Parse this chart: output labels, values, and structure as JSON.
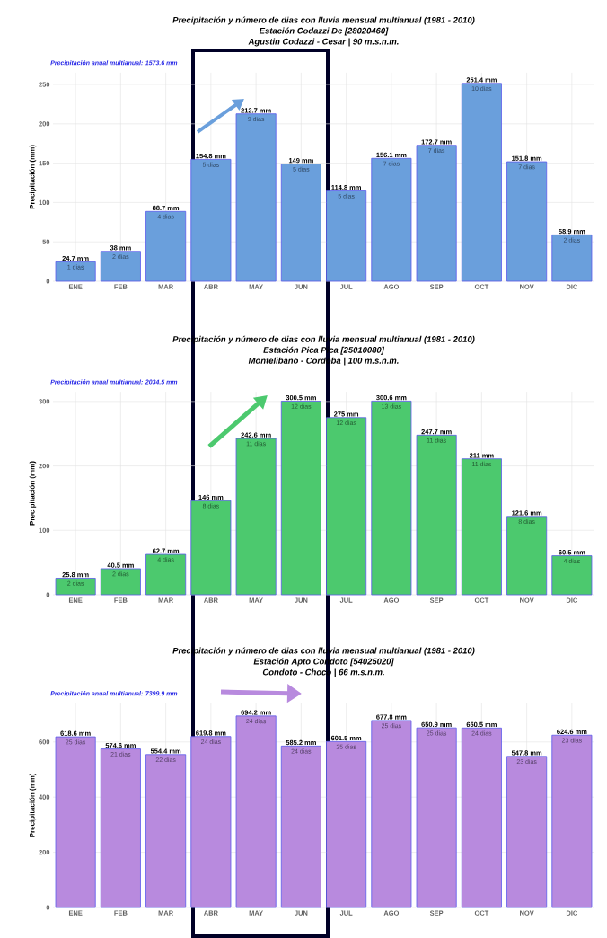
{
  "chart_data": [
    {
      "type": "bar",
      "title": "Precipitación y número de dias con lluvia mensual multianual (1981 - 2010)",
      "subtitle": "Estación Codazzi Dc [28020460]",
      "ylabel": "Precipitación (mm)",
      "categories": [
        "ENE",
        "FEB",
        "MAR",
        "ABR",
        "MAY",
        "JUN",
        "JUL",
        "AGO",
        "SEP",
        "OCT",
        "NOV",
        "DIC"
      ],
      "values": [
        24.7,
        38,
        88.7,
        154.8,
        212.7,
        149,
        114.8,
        156.1,
        172.7,
        251.4,
        151.8,
        58.9
      ],
      "value_labels": [
        "24.7 mm",
        "38 mm",
        "88.7 mm",
        "154.8 mm",
        "212.7 mm",
        "149 mm",
        "114.8 mm",
        "156.1 mm",
        "172.7 mm",
        "251.4 mm",
        "151.8 mm",
        "58.9 mm"
      ],
      "color": "#6a9fdc",
      "ylim": [
        0,
        265
      ],
      "yticks": [
        0,
        50,
        100,
        150,
        200,
        250
      ],
      "grid": true,
      "annotations": [
        "Agustin Codazzi - Cesar | 90 m.s.n.m.",
        "Precipitación anual multianual: 1573.6 mm",
        {
          "text": "1 dias",
          "x": "ENE",
          "y": 24.7
        },
        {
          "text": "2 dias",
          "x": "FEB",
          "y": 38
        },
        {
          "text": "4 dias",
          "x": "MAR",
          "y": 88.7
        },
        {
          "text": "5 dias",
          "x": "ABR",
          "y": 154.8
        },
        {
          "text": "9 dias",
          "x": "MAY",
          "y": 212.7
        },
        {
          "text": "5 dias",
          "x": "JUN",
          "y": 149
        },
        {
          "text": "5 dias",
          "x": "JUL",
          "y": 114.8
        },
        {
          "text": "7 dias",
          "x": "AGO",
          "y": 156.1
        },
        {
          "text": "7 dias",
          "x": "SEP",
          "y": 172.7
        },
        {
          "text": "10 dias",
          "x": "OCT",
          "y": 251.4
        },
        {
          "text": "7 dias",
          "x": "NOV",
          "y": 151.8
        },
        {
          "text": "2 dias",
          "x": "DIC",
          "y": 58.9
        }
      ]
    },
    {
      "type": "bar",
      "title": "Precipitación y número de dias con lluvia mensual multianual (1981 - 2010)",
      "subtitle": "Estación Pica Pica [25010080]",
      "ylabel": "Precipitación (mm)",
      "categories": [
        "ENE",
        "FEB",
        "MAR",
        "ABR",
        "MAY",
        "JUN",
        "JUL",
        "AGO",
        "SEP",
        "OCT",
        "NOV",
        "DIC"
      ],
      "values": [
        25.8,
        40.5,
        62.7,
        146,
        242.6,
        300.5,
        275,
        300.6,
        247.7,
        211,
        121.6,
        60.5
      ],
      "value_labels": [
        "25.8 mm",
        "40.5 mm",
        "62.7 mm",
        "146 mm",
        "242.6 mm",
        "300.5 mm",
        "275 mm",
        "300.6 mm",
        "247.7 mm",
        "211 mm",
        "121.6 mm",
        "60.5 mm"
      ],
      "color": "#4cc96e",
      "ylim": [
        0,
        315
      ],
      "yticks": [
        0,
        100,
        200,
        300
      ],
      "grid": true,
      "annotations": [
        "Montelibano - Cordoba | 100 m.s.n.m.",
        "Precipitación anual multianual: 2034.5 mm",
        {
          "text": "2 dias",
          "x": "ENE",
          "y": 25.8
        },
        {
          "text": "2 dias",
          "x": "FEB",
          "y": 40.5
        },
        {
          "text": "4 dias",
          "x": "MAR",
          "y": 62.7
        },
        {
          "text": "8 dias",
          "x": "ABR",
          "y": 146
        },
        {
          "text": "11 dias",
          "x": "MAY",
          "y": 242.6
        },
        {
          "text": "12 dias",
          "x": "JUN",
          "y": 300.5
        },
        {
          "text": "12 dias",
          "x": "JUL",
          "y": 275
        },
        {
          "text": "13 dias",
          "x": "AGO",
          "y": 300.6
        },
        {
          "text": "11 dias",
          "x": "SEP",
          "y": 247.7
        },
        {
          "text": "11 dias",
          "x": "OCT",
          "y": 211
        },
        {
          "text": "8 dias",
          "x": "NOV",
          "y": 121.6
        },
        {
          "text": "4 dias",
          "x": "DIC",
          "y": 60.5
        }
      ]
    },
    {
      "type": "bar",
      "title": "Precipitación y número de dias con lluvia mensual multianual (1981 - 2010)",
      "subtitle": "Estación Apto Condoto [54025020]",
      "ylabel": "Precipitación (mm)",
      "categories": [
        "ENE",
        "FEB",
        "MAR",
        "ABR",
        "MAY",
        "JUN",
        "JUL",
        "AGO",
        "SEP",
        "OCT",
        "NOV",
        "DIC"
      ],
      "values": [
        618.6,
        574.6,
        554.4,
        619.8,
        694.2,
        585.2,
        601.5,
        677.8,
        650.9,
        650.5,
        547.8,
        624.6
      ],
      "value_labels": [
        "618.6 mm",
        "574.6 mm",
        "554.4 mm",
        "619.8 mm",
        "694.2 mm",
        "585.2 mm",
        "601.5 mm",
        "677.8 mm",
        "650.9 mm",
        "650.5 mm",
        "547.8 mm",
        "624.6 mm"
      ],
      "color": "#b88ade",
      "ylim": [
        0,
        740
      ],
      "yticks": [
        0,
        200,
        400,
        600
      ],
      "grid": true,
      "annotations": [
        "Condoto - Choco | 66 m.s.n.m.",
        "Precipitación anual multianual: 7399.9 mm",
        {
          "text": "25 dias",
          "x": "ENE",
          "y": 618.6
        },
        {
          "text": "21 dias",
          "x": "FEB",
          "y": 574.6
        },
        {
          "text": "22 dias",
          "x": "MAR",
          "y": 554.4
        },
        {
          "text": "24 dias",
          "x": "ABR",
          "y": 619.8
        },
        {
          "text": "24 dias",
          "x": "MAY",
          "y": 694.2
        },
        {
          "text": "24 dias",
          "x": "JUN",
          "y": 585.2
        },
        {
          "text": "25 dias",
          "x": "JUL",
          "y": 601.5
        },
        {
          "text": "25 dias",
          "x": "AGO",
          "y": 677.8
        },
        {
          "text": "25 dias",
          "x": "SEP",
          "y": 650.9
        },
        {
          "text": "24 dias",
          "x": "OCT",
          "y": 650.5
        },
        {
          "text": "23 dias",
          "x": "NOV",
          "y": 547.8
        },
        {
          "text": "23 dias",
          "x": "DIC",
          "y": 624.6
        }
      ]
    }
  ]
}
